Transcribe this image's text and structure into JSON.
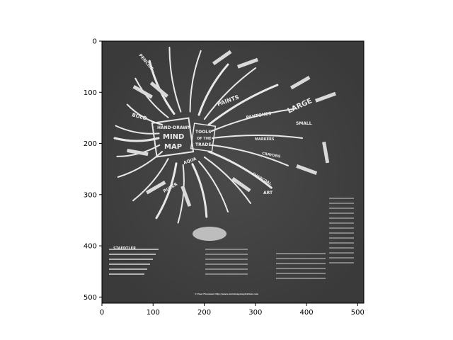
{
  "figure": {
    "x_axis": {
      "range": [
        0,
        512
      ],
      "ticks": [
        0,
        100,
        200,
        300,
        400,
        500
      ]
    },
    "y_axis": {
      "range": [
        512,
        0
      ],
      "inverted": true,
      "ticks": [
        0,
        100,
        200,
        300,
        400,
        500
      ]
    },
    "image": {
      "colormap": "grayscale",
      "background_color": "#444444",
      "subject": "hand-drawn mind map on dark background",
      "center_text": [
        "HAND-DRAWN",
        "MIND",
        "MAP"
      ],
      "center_side_text": [
        "TOOLS",
        "OF THE",
        "TRADE"
      ],
      "branch_words": [
        "PENCILS",
        "PAINTS",
        "PANTONES",
        "LARGE",
        "SMALL",
        "BOLD",
        "MARKERS",
        "CRAYONS",
        "CHARCOAL",
        "AQUA",
        "RULER",
        "ART",
        "STAEDTLER"
      ],
      "footer_text": "© Paul Foreman http://www.mindmapinspiration.com"
    }
  }
}
